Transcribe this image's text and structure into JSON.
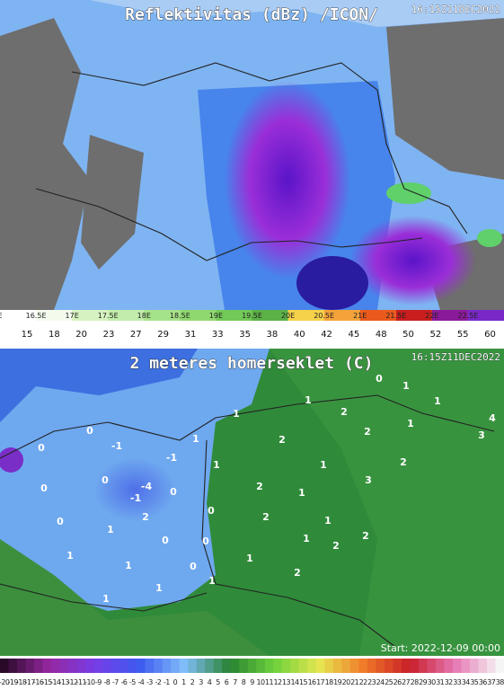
{
  "top_map": {
    "title": "Reflektivitas (dBz) /ICON/",
    "timestamp": "16:15Z11DEC2022",
    "longitudes": [
      "E",
      "16.5E",
      "17E",
      "17.5E",
      "18E",
      "18.5E",
      "19E",
      "19.5E",
      "20E",
      "20.5E",
      "21E",
      "21.5E",
      "22E",
      "22.5E"
    ],
    "dbz_scale": [
      15,
      18,
      20,
      23,
      27,
      29,
      31,
      33,
      35,
      38,
      40,
      42,
      45,
      48,
      50,
      52,
      55,
      60
    ]
  },
  "bottom_map": {
    "title": "2 meteres homerseklet (C)",
    "timestamp": "16:15Z11DEC2022",
    "start": "Start: 2022-12-09 00:00",
    "temperatures": [
      0,
      1,
      1,
      4,
      3,
      1,
      2,
      1,
      1,
      2,
      2,
      0,
      1,
      -1,
      0,
      -1,
      2,
      1,
      1,
      0,
      -4,
      0,
      3,
      0,
      2,
      1,
      -1,
      0,
      2,
      2,
      1,
      0,
      1,
      0,
      0,
      2,
      1,
      2,
      1,
      1,
      1,
      0,
      2,
      1,
      1,
      1
    ],
    "scale": [
      -20,
      -19,
      -18,
      -17,
      -16,
      -15,
      -14,
      -13,
      -12,
      -11,
      -10,
      -9,
      -8,
      -7,
      -6,
      -5,
      -4,
      -3,
      -2,
      -1,
      0,
      1,
      2,
      3,
      4,
      5,
      6,
      7,
      8,
      9,
      10,
      11,
      12,
      13,
      14,
      15,
      16,
      17,
      18,
      19,
      20,
      21,
      22,
      23,
      24,
      25,
      26,
      27,
      28,
      29,
      30,
      31,
      32,
      33,
      34,
      35,
      36,
      37,
      38
    ]
  }
}
